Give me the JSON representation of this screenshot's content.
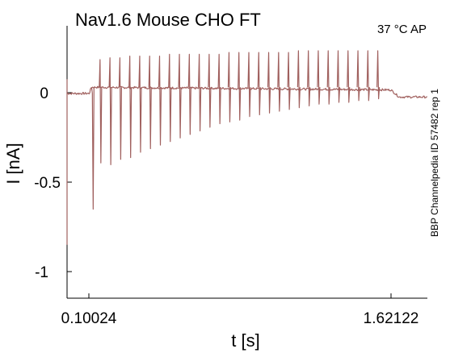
{
  "chart_data": {
    "type": "line",
    "title": "Nav1.6  Mouse  CHO FT",
    "condition": "37 °C  AP",
    "side_label": "BBP Channelpedia ID 57482 rep 1",
    "xlabel": "t [s]",
    "ylabel": "I [nA]",
    "x_ticks": [
      "0.10024",
      "1.62122"
    ],
    "y_ticks": [
      "0",
      "-0.5",
      "-1"
    ],
    "xlim": [
      0.0,
      1.78
    ],
    "ylim": [
      -1.15,
      0.38
    ],
    "grid": false,
    "trace_color": "#a0605e",
    "baseline": 0.0,
    "step_start": 0.11,
    "step_end": 1.6,
    "plateau": 0.035,
    "post_step_level": -0.02,
    "spikes": [
      {
        "t": 0.125,
        "min": -0.65,
        "max": 0.0
      },
      {
        "t": 0.163,
        "min": -0.39,
        "max": 0.19
      },
      {
        "t": 0.212,
        "min": -0.4,
        "max": 0.2
      },
      {
        "t": 0.261,
        "min": -0.37,
        "max": 0.2
      },
      {
        "t": 0.31,
        "min": -0.36,
        "max": 0.21
      },
      {
        "t": 0.359,
        "min": -0.33,
        "max": 0.21
      },
      {
        "t": 0.408,
        "min": -0.31,
        "max": 0.21
      },
      {
        "t": 0.457,
        "min": -0.29,
        "max": 0.21
      },
      {
        "t": 0.506,
        "min": -0.27,
        "max": 0.22
      },
      {
        "t": 0.555,
        "min": -0.25,
        "max": 0.22
      },
      {
        "t": 0.604,
        "min": -0.23,
        "max": 0.22
      },
      {
        "t": 0.653,
        "min": -0.21,
        "max": 0.22
      },
      {
        "t": 0.702,
        "min": -0.19,
        "max": 0.22
      },
      {
        "t": 0.751,
        "min": -0.17,
        "max": 0.22
      },
      {
        "t": 0.8,
        "min": -0.16,
        "max": 0.23
      },
      {
        "t": 0.849,
        "min": -0.15,
        "max": 0.23
      },
      {
        "t": 0.898,
        "min": -0.13,
        "max": 0.23
      },
      {
        "t": 0.947,
        "min": -0.12,
        "max": 0.23
      },
      {
        "t": 0.996,
        "min": -0.11,
        "max": 0.23
      },
      {
        "t": 1.045,
        "min": -0.1,
        "max": 0.23
      },
      {
        "t": 1.094,
        "min": -0.09,
        "max": 0.23
      },
      {
        "t": 1.143,
        "min": -0.08,
        "max": 0.24
      },
      {
        "t": 1.192,
        "min": -0.07,
        "max": 0.24
      },
      {
        "t": 1.241,
        "min": -0.06,
        "max": 0.24
      },
      {
        "t": 1.29,
        "min": -0.06,
        "max": 0.24
      },
      {
        "t": 1.339,
        "min": -0.05,
        "max": 0.24
      },
      {
        "t": 1.388,
        "min": -0.05,
        "max": 0.24
      },
      {
        "t": 1.437,
        "min": -0.04,
        "max": 0.24
      },
      {
        "t": 1.486,
        "min": -0.04,
        "max": 0.24
      },
      {
        "t": 1.535,
        "min": -0.03,
        "max": 0.24
      }
    ]
  }
}
